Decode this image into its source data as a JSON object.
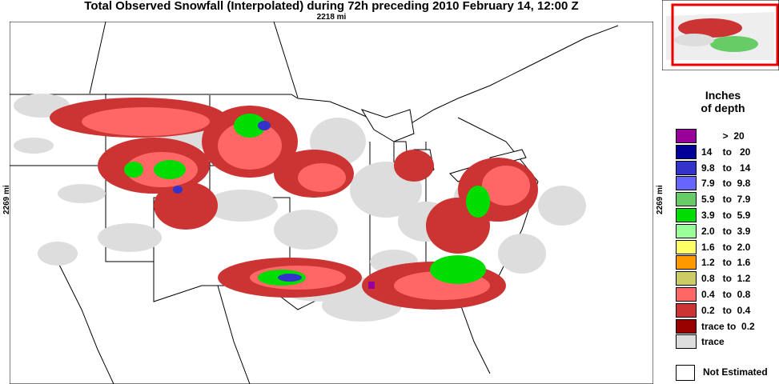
{
  "title": "Total Observed Snowfall (Interpolated) during 72h preceding 2010 February 14, 12:00 Z",
  "map": {
    "width_label": "2218 mi",
    "height_label": "2269 mi"
  },
  "legend": {
    "title_line1": "Inches",
    "title_line2": "of depth",
    "items": [
      {
        "label": "        >  20",
        "color": "#990099"
      },
      {
        "label": "14    to   20",
        "color": "#000099"
      },
      {
        "label": "9.8   to   14",
        "color": "#3333cc"
      },
      {
        "label": "7.9   to  9.8",
        "color": "#6666ff"
      },
      {
        "label": "5.9   to  7.9",
        "color": "#66cc66"
      },
      {
        "label": "3.9   to  5.9",
        "color": "#00dd00"
      },
      {
        "label": "2.0   to  3.9",
        "color": "#99ff99"
      },
      {
        "label": "1.6   to  2.0",
        "color": "#ffff66"
      },
      {
        "label": "1.2   to  1.6",
        "color": "#ff9900"
      },
      {
        "label": "0.8   to  1.2",
        "color": "#cccc66"
      },
      {
        "label": "0.4   to  0.8",
        "color": "#ff6666"
      },
      {
        "label": "0.2   to  0.4",
        "color": "#cc3333"
      },
      {
        "label": "trace to  0.2",
        "color": "#990000"
      },
      {
        "label": "trace",
        "color": "#dddddd"
      }
    ],
    "not_estimated": "Not Estimated"
  }
}
